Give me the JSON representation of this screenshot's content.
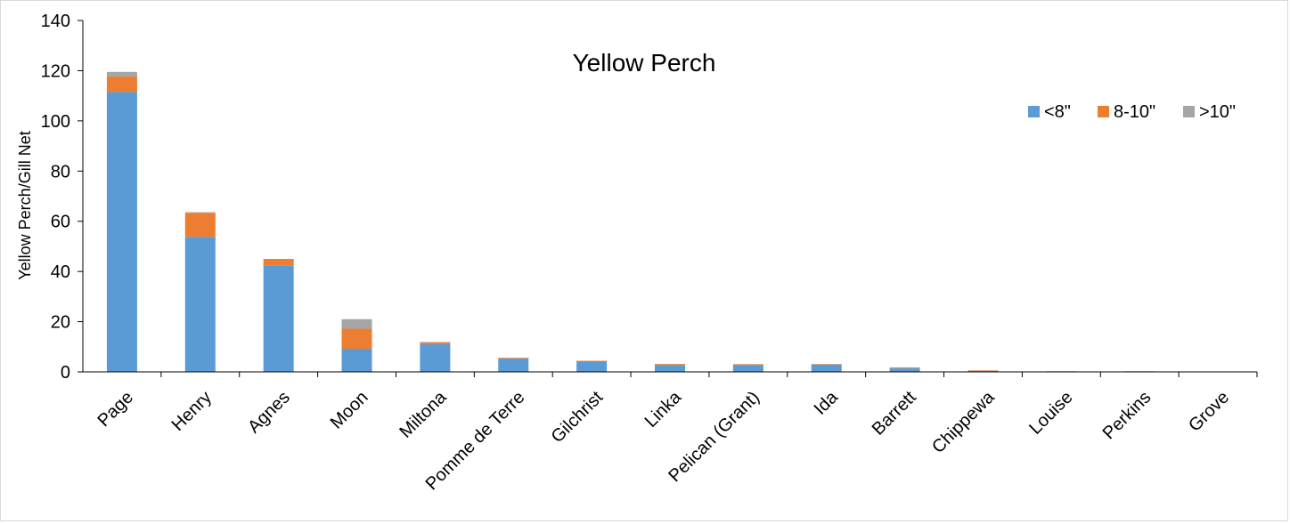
{
  "chart_data": {
    "type": "bar",
    "stacked": true,
    "title": "Yellow Perch",
    "xlabel": "",
    "ylabel": "Yellow Perch/Gill Net",
    "ylim": [
      0,
      140
    ],
    "yticks": [
      0,
      20,
      40,
      60,
      80,
      100,
      120,
      140
    ],
    "grid": false,
    "legend_position": "top-right",
    "categories": [
      "Page",
      "Henry",
      "Agnes",
      "Moon",
      "Miltona",
      "Pomme de Terre",
      "Gilchrist",
      "Linka",
      "Pelican (Grant)",
      "Ida",
      "Barrett",
      "Chippewa",
      "Louise",
      "Perkins",
      "Grove"
    ],
    "series": [
      {
        "name": "<8\"",
        "color": "#5b9bd5",
        "values": [
          111.5,
          53.8,
          42.3,
          9.2,
          11.0,
          5.3,
          4.3,
          2.5,
          2.5,
          3.0,
          1.4,
          0.5,
          0.25,
          0.25,
          0.1
        ]
      },
      {
        "name": "8-10\"",
        "color": "#ed7d31",
        "values": [
          6.2,
          9.6,
          2.7,
          8.0,
          0.8,
          0.3,
          0.1,
          0.6,
          0.5,
          0.1,
          0.3,
          0.1,
          0.0,
          0.0,
          0.0
        ]
      },
      {
        "name": ">10\"",
        "color": "#a5a5a5",
        "values": [
          1.8,
          0.2,
          0.0,
          3.8,
          0.1,
          0.0,
          0.0,
          0.1,
          0.1,
          0.0,
          0.1,
          0.0,
          0.0,
          0.0,
          0.0
        ]
      }
    ]
  }
}
